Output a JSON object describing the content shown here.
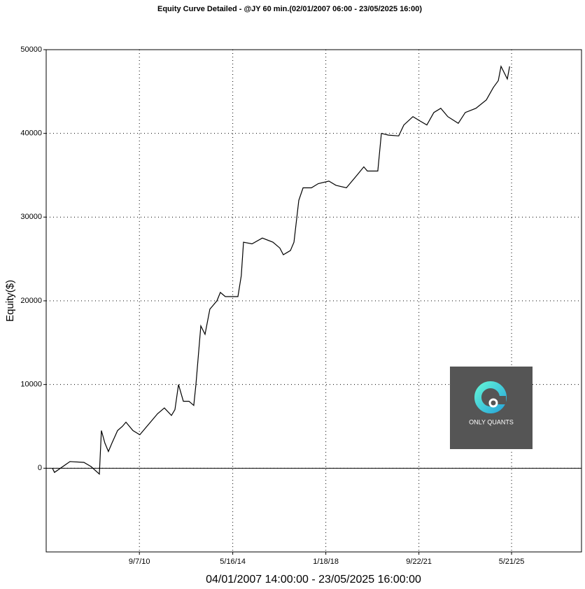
{
  "chart_data": {
    "type": "line",
    "title": "Equity Curve Detailed - @JY 60 min.(02/01/2007 06:00 - 23/05/2025 16:00)",
    "y_label": "Equity($)",
    "x_label": "04/01/2007 14:00:00 - 23/05/2025 16:00:00",
    "watermark": "ONLY QUANTS",
    "color": "#000000",
    "x": [
      "2007-04-01",
      "2007-05-01",
      "2007-10-20",
      "2007-12-10",
      "2008-06-28",
      "2008-10-08",
      "2009-02-06",
      "2009-03-08",
      "2009-04-27",
      "2009-06-17",
      "2009-08-07",
      "2009-10-27",
      "2010-01-05",
      "2010-02-25",
      "2010-06-06",
      "2010-09-13",
      "2010-12-24",
      "2011-02-13",
      "2011-05-26",
      "2011-09-02",
      "2011-12-13",
      "2012-02-02",
      "2012-03-24",
      "2012-06-02",
      "2012-08-22",
      "2012-10-30",
      "2012-12-01",
      "2013-02-09",
      "2013-04-11",
      "2013-06-20",
      "2013-09-30",
      "2013-11-18",
      "2014-01-29",
      "2014-04-20",
      "2014-07-30",
      "2014-09-16",
      "2014-10-18",
      "2015-02-17",
      "2015-07-17",
      "2015-12-16",
      "2016-03-25",
      "2016-05-15",
      "2016-08-25",
      "2016-10-15",
      "2016-12-24",
      "2017-02-24",
      "2017-06-24",
      "2017-10-01",
      "2018-03-03",
      "2018-06-13",
      "2018-11-10",
      "2019-04-12",
      "2019-07-20",
      "2019-09-09",
      "2020-02-07",
      "2020-03-29",
      "2020-07-08",
      "2020-12-05",
      "2021-02-16",
      "2021-06-28",
      "2021-10-05",
      "2022-01-15",
      "2022-04-26",
      "2022-08-04",
      "2022-11-13",
      "2023-04-13",
      "2023-07-23",
      "2023-12-23",
      "2024-05-22",
      "2024-09-01",
      "2024-11-10",
      "2024-12-20",
      "2025-03-21",
      "2025-04-23"
    ],
    "values": [
      0,
      -500,
      500,
      800,
      700,
      200,
      -700,
      4500,
      3000,
      2000,
      3000,
      4500,
      5000,
      5500,
      4500,
      4000,
      5000,
      5500,
      6500,
      7200,
      6300,
      7000,
      10000,
      8000,
      8000,
      7500,
      10000,
      17000,
      16000,
      19000,
      20000,
      21000,
      20500,
      20500,
      20500,
      23000,
      27000,
      26800,
      27500,
      27000,
      26300,
      25500,
      26000,
      27000,
      32000,
      33500,
      33500,
      34000,
      34300,
      33800,
      33500,
      35000,
      36000,
      35500,
      35500,
      40000,
      39800,
      39700,
      41000,
      42000,
      41500,
      41000,
      42500,
      43000,
      42000,
      41200,
      42500,
      43000,
      44000,
      45500,
      46300,
      48000,
      46500,
      48000
    ],
    "xlim": [
      "2007-01-01",
      "2028-02-24"
    ],
    "xticks": [
      {
        "value": "2010-09-07",
        "label": "9/7/10"
      },
      {
        "value": "2014-05-16",
        "label": "5/16/14"
      },
      {
        "value": "2018-01-18",
        "label": "1/18/18"
      },
      {
        "value": "2021-09-22",
        "label": "9/22/21"
      },
      {
        "value": "2025-05-21",
        "label": "5/21/25"
      }
    ],
    "ylim": [
      -10000,
      50000
    ],
    "yticks": [
      0,
      10000,
      20000,
      30000,
      40000,
      50000
    ],
    "grid": true
  }
}
